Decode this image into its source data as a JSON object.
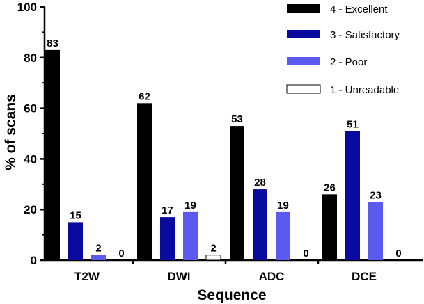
{
  "chart_data": {
    "type": "bar",
    "title": "",
    "xlabel": "Sequence",
    "ylabel": "% of scans",
    "ylim": [
      0,
      100
    ],
    "yticks": [
      0,
      20,
      40,
      60,
      80,
      100
    ],
    "categories": [
      "T2W",
      "DWI",
      "ADC",
      "DCE"
    ],
    "series": [
      {
        "name": "4 - Excellent",
        "color": "#000000",
        "values": [
          83,
          62,
          53,
          26
        ]
      },
      {
        "name": "3 - Satisfactory",
        "color": "#0a0aa0",
        "values": [
          15,
          17,
          28,
          51
        ]
      },
      {
        "name": "2 - Poor",
        "color": "#5a5af0",
        "values": [
          2,
          19,
          19,
          23
        ]
      },
      {
        "name": "1 - Unreadable",
        "color": "#ffffff",
        "values": [
          0,
          2,
          0,
          0
        ]
      }
    ],
    "legend_position": "top-right",
    "grid": false
  }
}
